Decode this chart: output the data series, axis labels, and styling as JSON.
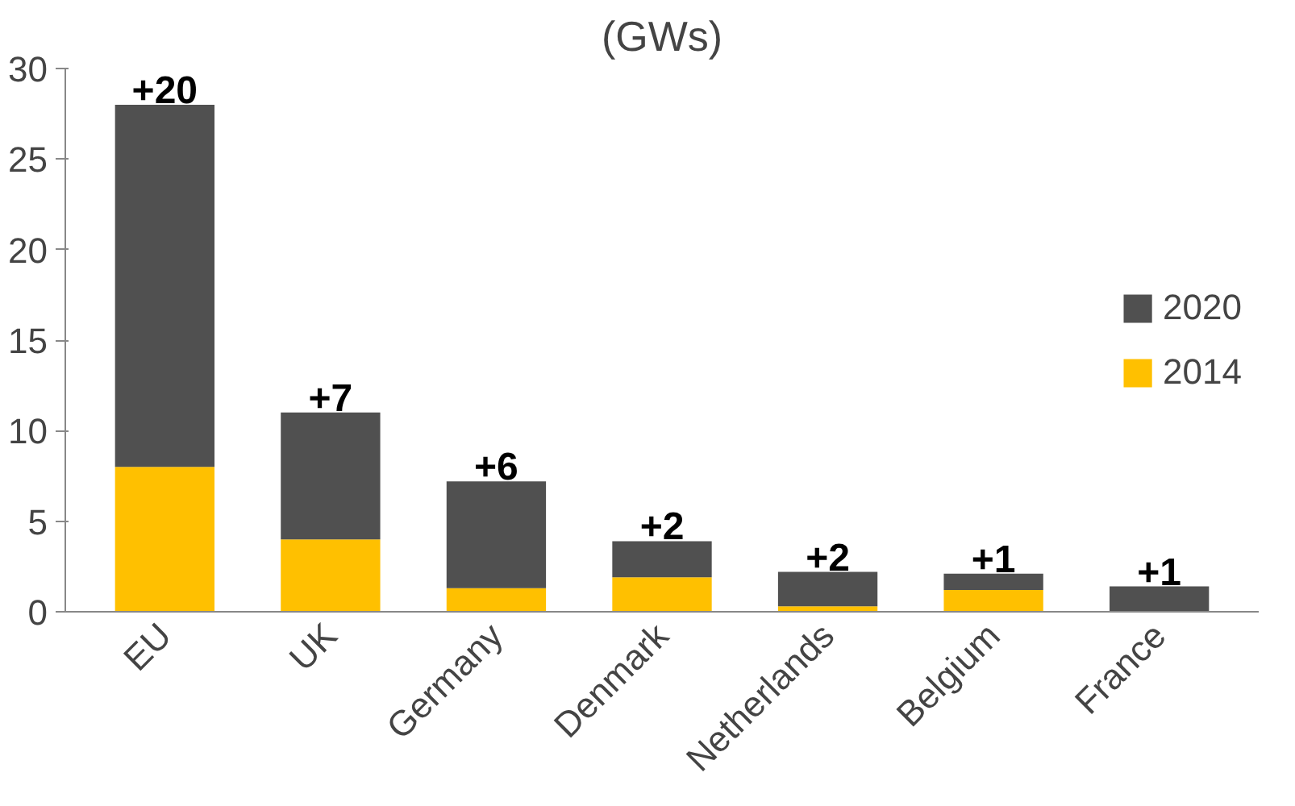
{
  "chart_data": {
    "type": "bar",
    "title": "(GWs)",
    "stacked": true,
    "categories": [
      "EU",
      "UK",
      "Germany",
      "Denmark",
      "Netherlands",
      "Belgium",
      "France"
    ],
    "series": [
      {
        "name": "2014",
        "color": "#ffc000",
        "values": [
          8,
          4,
          1.3,
          1.9,
          0.3,
          1.2,
          0
        ]
      },
      {
        "name": "2020",
        "color": "#505050",
        "values": [
          20,
          7,
          5.9,
          2.0,
          1.9,
          0.9,
          1.4
        ],
        "value_labels": [
          "+20",
          "+7",
          "+6",
          "+2",
          "+2",
          "+1",
          "+1"
        ]
      }
    ],
    "ylim": [
      0,
      30
    ],
    "yticks": [
      0,
      5,
      10,
      15,
      20,
      25,
      30
    ],
    "grid": false,
    "legend": "right"
  }
}
